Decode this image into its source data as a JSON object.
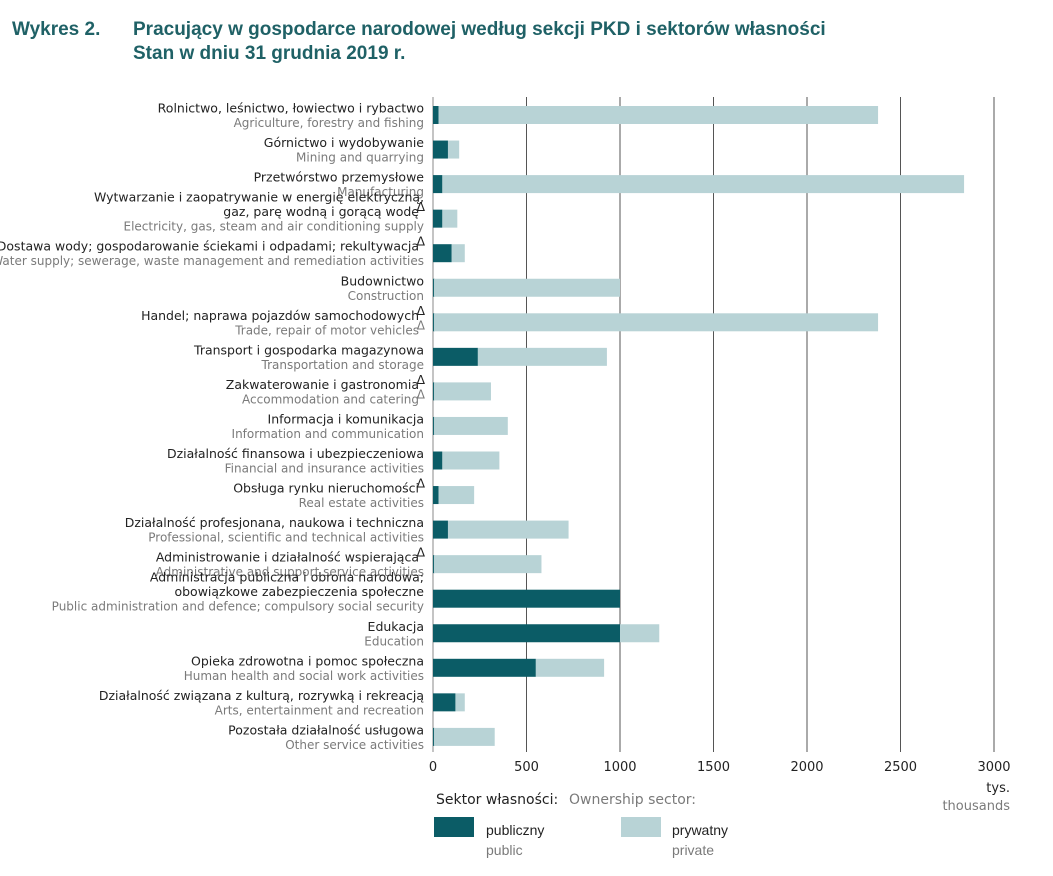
{
  "header": {
    "label": "Wykres 2.",
    "title_line1": "Pracujący w gospodarce narodowej według sekcji PKD i sektorów własności",
    "title_line2": "Stan w dniu 31 grudnia 2019 r."
  },
  "chart_data": {
    "type": "bar",
    "orientation": "horizontal",
    "stacked": true,
    "categories": [
      {
        "pl": [
          "Rolnictwo, leśnictwo, łowiectwo i rybactwo"
        ],
        "en": [
          "Agriculture, forestry and fishing"
        ]
      },
      {
        "pl": [
          "Górnictwo i wydobywanie"
        ],
        "en": [
          "Mining and quarrying"
        ]
      },
      {
        "pl": [
          "Przetwórstwo przemysłowe"
        ],
        "en": [
          "Manufacturing"
        ]
      },
      {
        "pl": [
          "Wytwarzanie i zaopatrywanie w energię elektryczną,",
          "gaz, parę wodną i gorącą wodę"
        ],
        "en": [
          "Electricity, gas, steam and air conditioning supply"
        ],
        "pl_note": "Δ"
      },
      {
        "pl": [
          "Dostawa wody; gospodarowanie ściekami i odpadami; rekultywacja"
        ],
        "en": [
          "Water supply; sewerage, waste management and remediation activities"
        ],
        "pl_note": "Δ"
      },
      {
        "pl": [
          "Budownictwo"
        ],
        "en": [
          "Construction"
        ]
      },
      {
        "pl": [
          "Handel; naprawa pojazdów samochodowych"
        ],
        "en": [
          "Trade, repair of motor vehicles"
        ],
        "pl_note": "Δ",
        "en_note": "Δ"
      },
      {
        "pl": [
          "Transport i gospodarka magazynowa"
        ],
        "en": [
          "Transportation and storage"
        ]
      },
      {
        "pl": [
          "Zakwaterowanie i gastronomia"
        ],
        "en": [
          "Accommodation and catering"
        ],
        "pl_note": "Δ",
        "en_note": "Δ"
      },
      {
        "pl": [
          "Informacja i komunikacja"
        ],
        "en": [
          "Information and communication"
        ]
      },
      {
        "pl": [
          "Działalność finansowa i ubezpieczeniowa"
        ],
        "en": [
          "Financial and insurance activities"
        ]
      },
      {
        "pl": [
          "Obsługa rynku nieruchomości"
        ],
        "en": [
          "Real estate activities"
        ],
        "pl_note": "Δ"
      },
      {
        "pl": [
          "Działalność profesjonana, naukowa i techniczna"
        ],
        "en": [
          "Professional, scientific and technical activities"
        ]
      },
      {
        "pl": [
          "Administrowanie i działalność wspierająca"
        ],
        "en": [
          "Administrative and support service activities"
        ],
        "pl_note": "Δ"
      },
      {
        "pl": [
          "Administracja publiczna i obrona narodowa;",
          "obowiązkowe zabezpieczenia społeczne"
        ],
        "en": [
          "Public administration and defence; compulsory social security"
        ]
      },
      {
        "pl": [
          "Edukacja"
        ],
        "en": [
          "Education"
        ]
      },
      {
        "pl": [
          "Opieka zdrowotna i pomoc społeczna"
        ],
        "en": [
          "Human health and social work activities"
        ]
      },
      {
        "pl": [
          "Działalność związana z kulturą, rozrywką i rekreacją"
        ],
        "en": [
          "Arts, entertainment and recreation"
        ]
      },
      {
        "pl": [
          "Pozostała działalność usługowa"
        ],
        "en": [
          "Other service activities"
        ]
      }
    ],
    "series": [
      {
        "name": "publiczny",
        "name_en": "public",
        "color": "#0b5c66",
        "values": [
          30,
          80,
          50,
          50,
          100,
          5,
          5,
          240,
          5,
          5,
          50,
          30,
          80,
          5,
          1000,
          1000,
          550,
          120,
          5
        ]
      },
      {
        "name": "prywatny",
        "name_en": "private",
        "color": "#b8d3d6",
        "values": [
          2350,
          60,
          2790,
          80,
          70,
          995,
          2375,
          690,
          305,
          395,
          305,
          190,
          645,
          575,
          0,
          210,
          365,
          50,
          325
        ]
      }
    ],
    "x_axis": {
      "min": 0,
      "max": 3000,
      "ticks": [
        "0",
        "500",
        "1000",
        "1500",
        "2000",
        "2500",
        "3000"
      ],
      "unit_pl": "tys.",
      "unit_en": "thousands",
      "grid": true
    },
    "legend": {
      "title_pl": "Sektor własności:",
      "title_en": "Ownership sector:",
      "position": "bottom"
    }
  }
}
